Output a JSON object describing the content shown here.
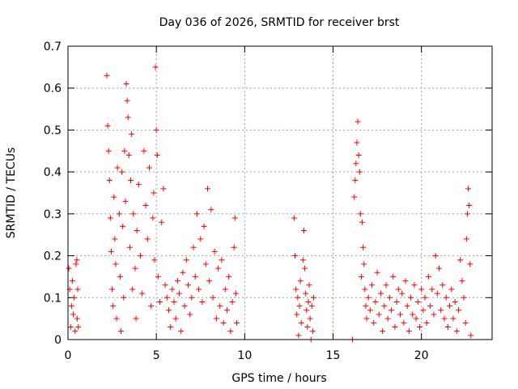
{
  "chart_data": {
    "type": "scatter",
    "title": "Day 036 of 2026, SRMTID for receiver brst",
    "xlabel": "GPS time / hours",
    "ylabel": "SRMTID / TECUs",
    "xlim": [
      0,
      24
    ],
    "ylim": [
      0,
      0.7
    ],
    "xticks": [
      0,
      5,
      10,
      15,
      20
    ],
    "xtick_labels": [
      "0",
      "5",
      "10",
      "15",
      "20"
    ],
    "yticks": [
      0,
      0.1,
      0.2,
      0.3,
      0.4,
      0.5,
      0.6,
      0.7
    ],
    "ytick_labels": [
      "0",
      "0.1",
      "0.2",
      "0.3",
      "0.4",
      "0.5",
      "0.6",
      "0.7"
    ],
    "grid": true,
    "marker": "+",
    "color": "#ff0000",
    "series": [
      {
        "name": "SRMTID",
        "points": [
          [
            0.05,
            0.17
          ],
          [
            0.1,
            0.12
          ],
          [
            0.15,
            0.03
          ],
          [
            0.2,
            0.08
          ],
          [
            0.25,
            0.14
          ],
          [
            0.3,
            0.06
          ],
          [
            0.35,
            0.1
          ],
          [
            0.4,
            0.02
          ],
          [
            0.45,
            0.18
          ],
          [
            0.5,
            0.19
          ],
          [
            0.52,
            0.05
          ],
          [
            0.55,
            0.12
          ],
          [
            0.58,
            0.03
          ],
          [
            2.2,
            0.63
          ],
          [
            2.25,
            0.51
          ],
          [
            2.3,
            0.45
          ],
          [
            2.35,
            0.38
          ],
          [
            2.4,
            0.29
          ],
          [
            2.45,
            0.21
          ],
          [
            2.5,
            0.12
          ],
          [
            2.55,
            0.08
          ],
          [
            2.6,
            0.34
          ],
          [
            2.65,
            0.24
          ],
          [
            2.7,
            0.18
          ],
          [
            2.75,
            0.05
          ],
          [
            2.8,
            0.41
          ],
          [
            2.9,
            0.3
          ],
          [
            2.95,
            0.15
          ],
          [
            3.0,
            0.02
          ],
          [
            3.05,
            0.4
          ],
          [
            3.1,
            0.27
          ],
          [
            3.15,
            0.1
          ],
          [
            3.2,
            0.45
          ],
          [
            3.25,
            0.33
          ],
          [
            3.3,
            0.61
          ],
          [
            3.35,
            0.57
          ],
          [
            3.4,
            0.53
          ],
          [
            3.45,
            0.44
          ],
          [
            3.5,
            0.22
          ],
          [
            3.55,
            0.38
          ],
          [
            3.6,
            0.49
          ],
          [
            3.65,
            0.12
          ],
          [
            3.7,
            0.3
          ],
          [
            3.8,
            0.17
          ],
          [
            3.85,
            0.05
          ],
          [
            3.9,
            0.26
          ],
          [
            4.0,
            0.37
          ],
          [
            4.1,
            0.2
          ],
          [
            4.2,
            0.11
          ],
          [
            4.3,
            0.45
          ],
          [
            4.4,
            0.32
          ],
          [
            4.5,
            0.24
          ],
          [
            4.6,
            0.41
          ],
          [
            4.7,
            0.08
          ],
          [
            4.8,
            0.29
          ],
          [
            4.85,
            0.35
          ],
          [
            4.9,
            0.19
          ],
          [
            4.95,
            0.65
          ],
          [
            5.0,
            0.5
          ],
          [
            5.05,
            0.44
          ],
          [
            5.1,
            0.15
          ],
          [
            5.2,
            0.09
          ],
          [
            5.3,
            0.28
          ],
          [
            5.4,
            0.36
          ],
          [
            5.5,
            0.13
          ],
          [
            5.6,
            0.1
          ],
          [
            5.7,
            0.07
          ],
          [
            5.8,
            0.03
          ],
          [
            5.9,
            0.12
          ],
          [
            6.0,
            0.09
          ],
          [
            6.1,
            0.05
          ],
          [
            6.2,
            0.14
          ],
          [
            6.3,
            0.11
          ],
          [
            6.4,
            0.02
          ],
          [
            6.5,
            0.16
          ],
          [
            6.6,
            0.08
          ],
          [
            6.7,
            0.19
          ],
          [
            6.8,
            0.13
          ],
          [
            6.9,
            0.06
          ],
          [
            7.0,
            0.1
          ],
          [
            7.1,
            0.22
          ],
          [
            7.2,
            0.15
          ],
          [
            7.3,
            0.3
          ],
          [
            7.4,
            0.12
          ],
          [
            7.5,
            0.24
          ],
          [
            7.6,
            0.09
          ],
          [
            7.7,
            0.27
          ],
          [
            7.8,
            0.18
          ],
          [
            7.9,
            0.36
          ],
          [
            8.0,
            0.14
          ],
          [
            8.1,
            0.31
          ],
          [
            8.2,
            0.1
          ],
          [
            8.3,
            0.21
          ],
          [
            8.4,
            0.05
          ],
          [
            8.5,
            0.17
          ],
          [
            8.6,
            0.08
          ],
          [
            8.7,
            0.19
          ],
          [
            8.8,
            0.04
          ],
          [
            8.9,
            0.12
          ],
          [
            9.0,
            0.07
          ],
          [
            9.1,
            0.15
          ],
          [
            9.2,
            0.02
          ],
          [
            9.3,
            0.09
          ],
          [
            9.4,
            0.22
          ],
          [
            9.45,
            0.29
          ],
          [
            9.5,
            0.11
          ],
          [
            9.55,
            0.04
          ],
          [
            12.8,
            0.29
          ],
          [
            12.85,
            0.2
          ],
          [
            12.9,
            0.12
          ],
          [
            12.95,
            0.06
          ],
          [
            13.0,
            0.1
          ],
          [
            13.05,
            0.01
          ],
          [
            13.1,
            0.08
          ],
          [
            13.15,
            0.14
          ],
          [
            13.2,
            0.04
          ],
          [
            13.3,
            0.19
          ],
          [
            13.35,
            0.26
          ],
          [
            13.4,
            0.17
          ],
          [
            13.45,
            0.11
          ],
          [
            13.5,
            0.07
          ],
          [
            13.55,
            0.03
          ],
          [
            13.6,
            0.09
          ],
          [
            13.65,
            0.13
          ],
          [
            13.7,
            0.05
          ],
          [
            13.75,
            0.0
          ],
          [
            13.8,
            0.08
          ],
          [
            13.85,
            0.02
          ],
          [
            13.9,
            0.1
          ],
          [
            16.1,
            0.0
          ],
          [
            16.2,
            0.34
          ],
          [
            16.25,
            0.38
          ],
          [
            16.3,
            0.42
          ],
          [
            16.35,
            0.47
          ],
          [
            16.4,
            0.52
          ],
          [
            16.45,
            0.44
          ],
          [
            16.5,
            0.4
          ],
          [
            16.55,
            0.3
          ],
          [
            16.6,
            0.15
          ],
          [
            16.65,
            0.28
          ],
          [
            16.7,
            0.22
          ],
          [
            16.75,
            0.18
          ],
          [
            16.8,
            0.12
          ],
          [
            16.85,
            0.08
          ],
          [
            16.9,
            0.05
          ],
          [
            17.0,
            0.1
          ],
          [
            17.1,
            0.07
          ],
          [
            17.2,
            0.13
          ],
          [
            17.3,
            0.04
          ],
          [
            17.4,
            0.09
          ],
          [
            17.5,
            0.16
          ],
          [
            17.6,
            0.06
          ],
          [
            17.7,
            0.11
          ],
          [
            17.8,
            0.02
          ],
          [
            17.9,
            0.08
          ],
          [
            18.0,
            0.13
          ],
          [
            18.1,
            0.05
          ],
          [
            18.2,
            0.1
          ],
          [
            18.3,
            0.07
          ],
          [
            18.4,
            0.15
          ],
          [
            18.5,
            0.03
          ],
          [
            18.6,
            0.09
          ],
          [
            18.7,
            0.12
          ],
          [
            18.8,
            0.06
          ],
          [
            18.9,
            0.11
          ],
          [
            19.0,
            0.04
          ],
          [
            19.1,
            0.14
          ],
          [
            19.2,
            0.08
          ],
          [
            19.3,
            0.02
          ],
          [
            19.4,
            0.1
          ],
          [
            19.5,
            0.06
          ],
          [
            19.6,
            0.13
          ],
          [
            19.7,
            0.05
          ],
          [
            19.8,
            0.09
          ],
          [
            19.9,
            0.03
          ],
          [
            20.0,
            0.12
          ],
          [
            20.1,
            0.07
          ],
          [
            20.2,
            0.1
          ],
          [
            20.3,
            0.04
          ],
          [
            20.4,
            0.15
          ],
          [
            20.5,
            0.08
          ],
          [
            20.6,
            0.12
          ],
          [
            20.7,
            0.06
          ],
          [
            20.8,
            0.2
          ],
          [
            20.9,
            0.11
          ],
          [
            21.0,
            0.17
          ],
          [
            21.1,
            0.07
          ],
          [
            21.2,
            0.13
          ],
          [
            21.3,
            0.05
          ],
          [
            21.4,
            0.1
          ],
          [
            21.5,
            0.03
          ],
          [
            21.6,
            0.08
          ],
          [
            21.7,
            0.12
          ],
          [
            21.8,
            0.05
          ],
          [
            21.9,
            0.09
          ],
          [
            22.0,
            0.02
          ],
          [
            22.1,
            0.07
          ],
          [
            22.2,
            0.19
          ],
          [
            22.3,
            0.14
          ],
          [
            22.4,
            0.1
          ],
          [
            22.5,
            0.04
          ],
          [
            22.55,
            0.24
          ],
          [
            22.6,
            0.3
          ],
          [
            22.65,
            0.36
          ],
          [
            22.7,
            0.32
          ],
          [
            22.75,
            0.18
          ],
          [
            22.8,
            0.01
          ]
        ]
      }
    ]
  }
}
